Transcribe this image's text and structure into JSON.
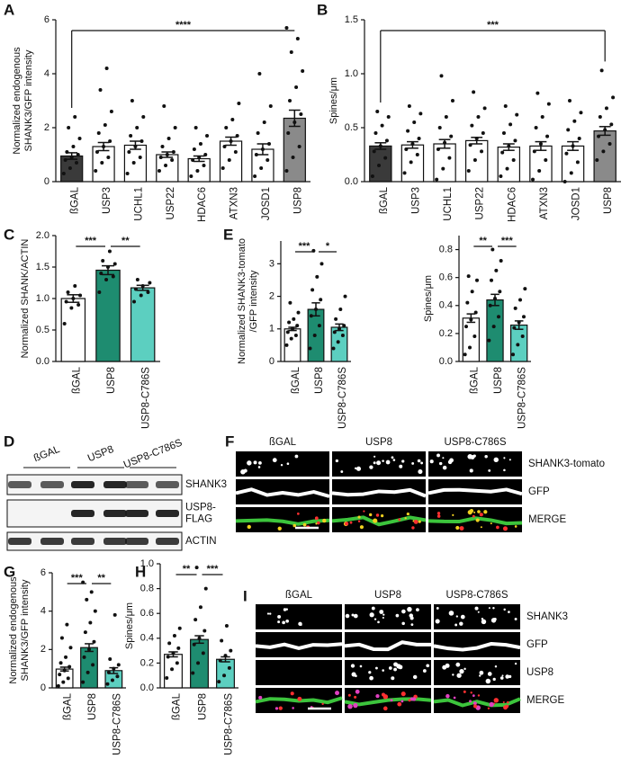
{
  "chart_data": [
    {
      "type": "bar",
      "label": "A",
      "ylabel": [
        "Normalized endogenous",
        "SHANK3/GFP intensity"
      ],
      "categories": [
        "ßGAL",
        "USP3",
        "UCHL1",
        "USP22",
        "HDAC6",
        "ATXN3",
        "JOSD1",
        "USP8"
      ],
      "values": [
        0.95,
        1.3,
        1.35,
        1.0,
        0.85,
        1.5,
        1.2,
        2.35
      ],
      "errors": [
        0.12,
        0.15,
        0.15,
        0.1,
        0.1,
        0.15,
        0.2,
        0.3
      ],
      "points": [
        [
          0.3,
          0.5,
          0.7,
          0.8,
          0.9,
          1.0,
          1.1,
          1.3,
          1.6,
          2.0,
          2.4
        ],
        [
          0.4,
          0.7,
          0.9,
          1.1,
          1.3,
          1.5,
          1.8,
          2.1,
          2.6,
          3.4,
          4.2
        ],
        [
          0.3,
          0.7,
          0.9,
          1.1,
          1.3,
          1.5,
          1.7,
          2.0,
          2.4,
          3.0
        ],
        [
          0.4,
          0.6,
          0.8,
          0.9,
          1.0,
          1.1,
          1.3,
          1.6,
          2.0,
          2.8
        ],
        [
          0.2,
          0.4,
          0.6,
          0.8,
          0.9,
          1.0,
          1.2,
          1.4,
          1.7,
          2.0
        ],
        [
          0.5,
          0.8,
          1.1,
          1.3,
          1.5,
          1.7,
          2.0,
          2.3,
          2.9
        ],
        [
          0.2,
          0.5,
          0.8,
          1.0,
          1.2,
          1.4,
          1.8,
          2.2,
          2.8,
          4.0
        ],
        [
          0.4,
          0.9,
          1.3,
          1.8,
          2.2,
          2.5,
          3.0,
          3.5,
          4.1,
          4.8,
          5.3,
          5.7
        ]
      ],
      "colors": [
        "#3a3a3a",
        "#ffffff",
        "#ffffff",
        "#ffffff",
        "#ffffff",
        "#ffffff",
        "#ffffff",
        "#8a8a8a"
      ],
      "ylim": [
        0,
        6
      ],
      "yticks": [
        0,
        2,
        4,
        6
      ],
      "annotations": [
        {
          "from": 0,
          "to": 7,
          "text": "****"
        }
      ]
    },
    {
      "type": "bar",
      "label": "B",
      "ylabel": [
        "Spines/μm"
      ],
      "categories": [
        "ßGAL",
        "USP3",
        "UCHL1",
        "USP22",
        "HDAC6",
        "ATXN3",
        "JOSD1",
        "USP8"
      ],
      "values": [
        0.33,
        0.34,
        0.35,
        0.38,
        0.32,
        0.33,
        0.33,
        0.47
      ],
      "errors": [
        0.03,
        0.03,
        0.04,
        0.03,
        0.03,
        0.04,
        0.04,
        0.04
      ],
      "points": [
        [
          0.05,
          0.15,
          0.22,
          0.28,
          0.33,
          0.38,
          0.45,
          0.52,
          0.6,
          0.65
        ],
        [
          0.08,
          0.18,
          0.25,
          0.3,
          0.35,
          0.4,
          0.47,
          0.55,
          0.63,
          0.7
        ],
        [
          0.02,
          0.12,
          0.22,
          0.3,
          0.36,
          0.42,
          0.5,
          0.6,
          0.75,
          0.98
        ],
        [
          0.1,
          0.2,
          0.28,
          0.34,
          0.4,
          0.45,
          0.52,
          0.6,
          0.68,
          0.83
        ],
        [
          0.05,
          0.12,
          0.2,
          0.27,
          0.33,
          0.38,
          0.45,
          0.53,
          0.62,
          0.7
        ],
        [
          0.02,
          0.1,
          0.2,
          0.28,
          0.35,
          0.42,
          0.5,
          0.6,
          0.72,
          0.82
        ],
        [
          0.0,
          0.08,
          0.18,
          0.26,
          0.33,
          0.4,
          0.48,
          0.56,
          0.64,
          0.75
        ],
        [
          0.2,
          0.28,
          0.35,
          0.42,
          0.48,
          0.53,
          0.6,
          0.68,
          0.78,
          1.03
        ]
      ],
      "colors": [
        "#3a3a3a",
        "#ffffff",
        "#ffffff",
        "#ffffff",
        "#ffffff",
        "#ffffff",
        "#ffffff",
        "#8a8a8a"
      ],
      "ylim": [
        0,
        1.5
      ],
      "yticks": [
        {
          "value": 0,
          "label": "0.0"
        },
        0.5,
        {
          "value": 1,
          "label": "1.0"
        },
        1.5
      ],
      "annotations": [
        {
          "from": 0,
          "to": 7,
          "text": "***"
        }
      ]
    },
    {
      "type": "bar",
      "label": "C",
      "ylabel": [
        "Normalized SHANK/ACTIN"
      ],
      "categories": [
        "ßGAL",
        "USP8",
        "USP8-C786S"
      ],
      "values": [
        1.0,
        1.45,
        1.17
      ],
      "errors": [
        0.06,
        0.07,
        0.04
      ],
      "points": [
        [
          0.6,
          0.85,
          0.9,
          0.95,
          1.0,
          1.05,
          1.1,
          1.2
        ],
        [
          1.1,
          1.3,
          1.35,
          1.4,
          1.5,
          1.55,
          1.6,
          1.75
        ],
        [
          0.95,
          1.05,
          1.1,
          1.15,
          1.2,
          1.25,
          1.3
        ]
      ],
      "colors": [
        "#ffffff",
        "#1e8c70",
        "#5ccfc0"
      ],
      "ylim": [
        0,
        2
      ],
      "yticks": [
        {
          "value": 0,
          "label": "0.0"
        },
        0.5,
        {
          "value": 1,
          "label": "1.0"
        },
        1.5,
        {
          "value": 2,
          "label": "2.0"
        }
      ],
      "annotations": [
        {
          "from": 0,
          "to": 1,
          "text": "***"
        },
        {
          "from": 1,
          "to": 2,
          "text": "**"
        }
      ]
    },
    {
      "type": "bar",
      "label": "E",
      "ylabel": [
        "Normalized SHANK3-tomato",
        "/GFP intensity"
      ],
      "categories": [
        "ßGAL",
        "USP8",
        "USP8-C786S"
      ],
      "values": [
        1.0,
        1.6,
        1.05
      ],
      "errors": [
        0.05,
        0.2,
        0.1
      ],
      "points": [
        [
          0.5,
          0.7,
          0.8,
          0.9,
          1.0,
          1.1,
          1.2,
          1.3,
          1.5,
          1.8
        ],
        [
          0.4,
          0.8,
          1.1,
          1.4,
          1.6,
          1.9,
          2.2,
          2.6,
          3.0,
          3.4
        ],
        [
          0.4,
          0.6,
          0.8,
          0.9,
          1.0,
          1.1,
          1.3,
          1.6,
          2.0
        ]
      ],
      "colors": [
        "#ffffff",
        "#1e8c70",
        "#5ccfc0"
      ],
      "ylim": [
        0,
        3.7
      ],
      "yticks": [
        0,
        1,
        2,
        3
      ],
      "annotations": [
        {
          "from": 0,
          "to": 1,
          "text": "***"
        },
        {
          "from": 1,
          "to": 2,
          "text": "*"
        }
      ]
    },
    {
      "type": "bar",
      "ylabel": [
        "Spines/μm"
      ],
      "categories": [
        "ßGAL",
        "USP8",
        "USP8-C786S"
      ],
      "values": [
        0.31,
        0.44,
        0.26
      ],
      "errors": [
        0.03,
        0.04,
        0.03
      ],
      "points": [
        [
          0.05,
          0.1,
          0.18,
          0.25,
          0.3,
          0.35,
          0.42,
          0.5,
          0.58,
          0.61
        ],
        [
          0.15,
          0.25,
          0.32,
          0.4,
          0.45,
          0.5,
          0.58,
          0.65,
          0.72,
          0.8
        ],
        [
          0.05,
          0.12,
          0.18,
          0.24,
          0.28,
          0.32,
          0.38,
          0.44,
          0.52
        ]
      ],
      "colors": [
        "#ffffff",
        "#1e8c70",
        "#5ccfc0"
      ],
      "ylim": [
        0,
        0.9
      ],
      "yticks": [
        {
          "value": 0,
          "label": "0.0"
        },
        0.2,
        0.4,
        0.6,
        0.8
      ],
      "annotations": [
        {
          "from": 0,
          "to": 1,
          "text": "**"
        },
        {
          "from": 1,
          "to": 2,
          "text": "***"
        }
      ]
    },
    {
      "type": "bar",
      "label": "G",
      "ylabel": [
        "Normalized endogenous",
        "SHANK3/GFP intensity"
      ],
      "categories": [
        "ßGAL",
        "USP8",
        "USP8-C786S"
      ],
      "values": [
        0.98,
        2.1,
        0.9
      ],
      "errors": [
        0.1,
        0.2,
        0.15
      ],
      "points": [
        [
          0.1,
          0.3,
          0.5,
          0.7,
          0.9,
          1.1,
          1.3,
          1.6,
          2.1,
          2.6,
          3.3
        ],
        [
          0.3,
          0.8,
          1.2,
          1.6,
          2.0,
          2.4,
          2.9,
          3.4,
          4.0,
          4.6,
          5.0,
          5.5
        ],
        [
          0.2,
          0.4,
          0.6,
          0.8,
          1.0,
          1.2,
          1.5,
          3.8
        ]
      ],
      "colors": [
        "#ffffff",
        "#1e8c70",
        "#5ccfc0"
      ],
      "ylim": [
        0,
        6
      ],
      "yticks": [
        0,
        2,
        4,
        6
      ],
      "annotations": [
        {
          "from": 0,
          "to": 1,
          "text": "***"
        },
        {
          "from": 1,
          "to": 2,
          "text": "**"
        }
      ]
    },
    {
      "type": "bar",
      "label": "H",
      "ylabel": [
        "Spines/μm"
      ],
      "categories": [
        "ßGAL",
        "USP8",
        "USP8-C786S"
      ],
      "values": [
        0.27,
        0.39,
        0.23
      ],
      "errors": [
        0.02,
        0.03,
        0.02
      ],
      "points": [
        [
          0.08,
          0.15,
          0.2,
          0.25,
          0.28,
          0.32,
          0.36,
          0.42,
          0.48
        ],
        [
          0.12,
          0.2,
          0.28,
          0.35,
          0.4,
          0.46,
          0.55,
          0.65,
          0.8,
          0.97
        ],
        [
          0.05,
          0.1,
          0.16,
          0.22,
          0.26,
          0.3,
          0.38,
          0.5
        ]
      ],
      "colors": [
        "#ffffff",
        "#1e8c70",
        "#5ccfc0"
      ],
      "ylim": [
        0,
        1
      ],
      "yticks": [
        {
          "value": 0,
          "label": "0.0"
        },
        0.2,
        0.4,
        0.6,
        0.8,
        {
          "value": 1,
          "label": "1.0"
        }
      ],
      "annotations": [
        {
          "from": 0,
          "to": 1,
          "text": "**"
        },
        {
          "from": 1,
          "to": 2,
          "text": "***"
        }
      ]
    }
  ],
  "blot": {
    "label": "D",
    "lanes": [
      "ßGAL",
      "USP8",
      "USP8-C786S"
    ],
    "bands": [
      [
        "SHANK3"
      ],
      [
        "USP8-",
        "FLAG"
      ],
      [
        "ACTIN"
      ]
    ]
  },
  "images_f": {
    "label": "F",
    "columns": [
      "ßGAL",
      "USP8",
      "USP8-C786S"
    ],
    "rows": [
      {
        "text": "SHANK3-tomato",
        "color": "#e0282c"
      },
      {
        "text": "GFP",
        "color": "#3aa935"
      },
      {
        "text": "MERGE",
        "color": "#222222"
      }
    ]
  },
  "images_i": {
    "label": "I",
    "columns": [
      "ßGAL",
      "USP8",
      "USP8-C786S"
    ],
    "rows": [
      {
        "text": "SHANK3",
        "color": "#e0282c"
      },
      {
        "text": "GFP",
        "color": "#3aa935"
      },
      {
        "text": "USP8",
        "color": "#e0209a"
      },
      {
        "text": "MERGE",
        "color": "#222222"
      }
    ]
  }
}
